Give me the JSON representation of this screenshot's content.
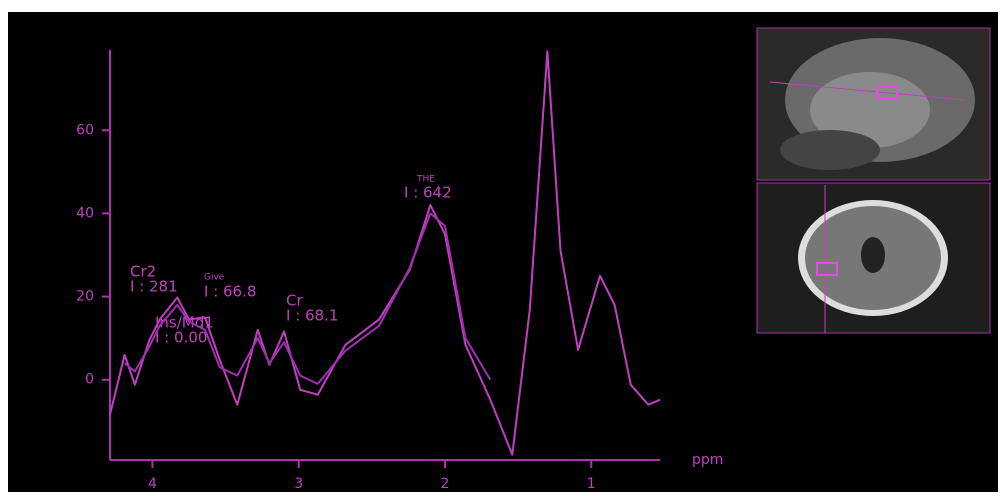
{
  "chart_data": {
    "type": "line",
    "xlabel": "ppm",
    "x": [
      4.29,
      4.19,
      4.12,
      4.02,
      3.95,
      3.83,
      3.75,
      3.64,
      3.54,
      3.42,
      3.28,
      3.2,
      3.1,
      2.99,
      2.87,
      2.68,
      2.45,
      2.24,
      2.1,
      2.0,
      1.86,
      1.69,
      1.54,
      1.42,
      1.3,
      1.21,
      1.09,
      0.94,
      0.84,
      0.73,
      0.61,
      0.53
    ],
    "series": [
      {
        "color": "#c040c0",
        "values": [
          -8.4,
          6,
          -1.2,
          9.6,
          14.5,
          19.8,
          14.5,
          15,
          4.8,
          -6,
          12,
          3.6,
          11.6,
          -2.4,
          -3.6,
          8.4,
          14.5,
          26.5,
          42,
          35,
          8.4,
          -4.8,
          -18,
          16.9,
          79,
          31,
          7.2,
          25,
          18,
          -1.2,
          -6,
          -4.8
        ]
      },
      {
        "color": "#a030b0",
        "values": [
          null,
          4,
          2,
          8,
          13,
          18,
          14,
          12,
          3,
          1,
          10,
          4,
          9,
          1,
          -1,
          7,
          13,
          27,
          40,
          37,
          10,
          0,
          null,
          null,
          null,
          null,
          null,
          null,
          null,
          null,
          null,
          null
        ]
      }
    ],
    "xlim": [
      4.29,
      0.53
    ],
    "ylim": [
      -19.3,
      79.3
    ],
    "xticks": [
      4,
      3,
      2,
      1
    ],
    "yticks": [
      0,
      20,
      40,
      60
    ],
    "annotations": [
      "Cr2",
      "I : 281",
      "Give",
      "I : 66.8",
      "Cr",
      "I : 68.1",
      "THE",
      "I : 642",
      "Ins/Md1",
      "I : 0.00"
    ]
  }
}
